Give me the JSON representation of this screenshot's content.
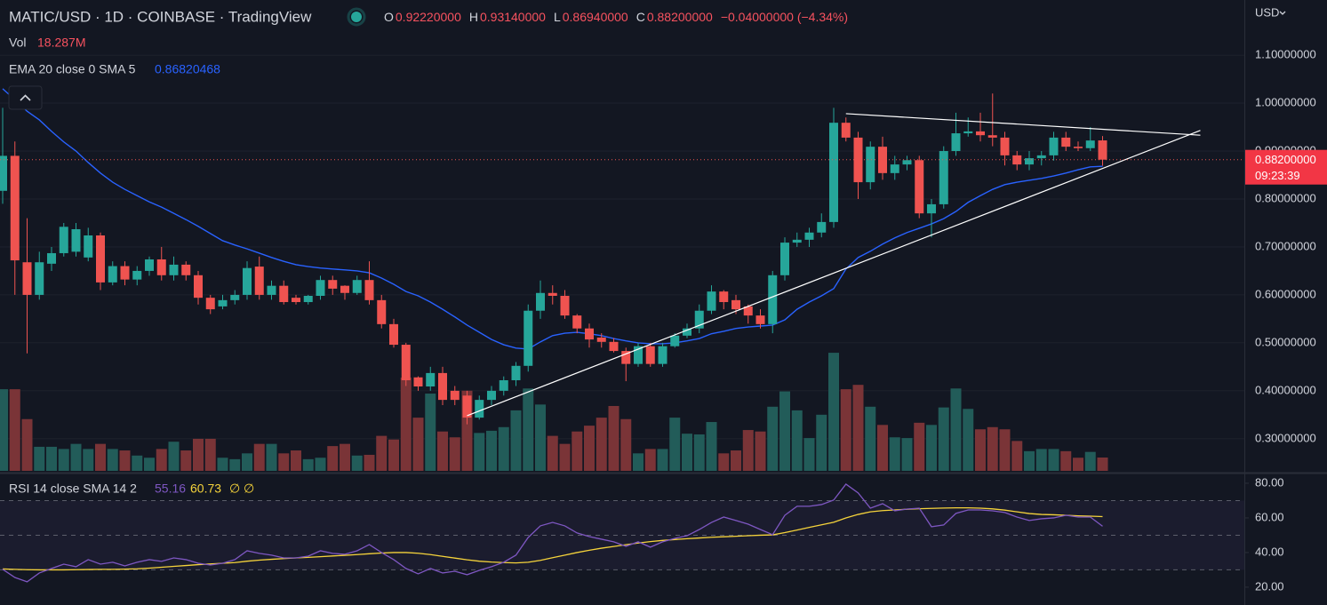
{
  "chart_data": {
    "type": "candlestick",
    "title": "MATIC/USD · 1D · COINBASE · TradingView",
    "ohlc_header": [
      {
        "key": "O",
        "label": "0.92220000"
      },
      {
        "key": "H",
        "label": "0.93140000"
      },
      {
        "key": "L",
        "label": "0.86940000"
      },
      {
        "key": "C",
        "label": "0.88200000"
      }
    ],
    "change_label": "−0.04000000 (−4.34%)",
    "volume_title": "Vol",
    "volume_label": "18.287M",
    "ema_title": "EMA 20 close 0 SMA 5",
    "currency": "USD",
    "price_label": "0.88200000",
    "countdown": "09:23:39",
    "up_color": "#26a69a",
    "down_color": "#ef5350",
    "volume_up_color": "#225c59",
    "volume_down_color": "#7a3437",
    "ema_color": "#2962ff",
    "trendline_color": "#ffffff",
    "grid": true,
    "ylim": [
      0.233,
      1.215
    ],
    "yticks": [
      {
        "value": 0.3,
        "label": "0.30000000"
      },
      {
        "value": 0.4,
        "label": "0.40000000"
      },
      {
        "value": 0.5,
        "label": "0.50000000"
      },
      {
        "value": 0.6,
        "label": "0.60000000"
      },
      {
        "value": 0.7,
        "label": "0.70000000"
      },
      {
        "value": 0.8,
        "label": "0.80000000"
      },
      {
        "value": 0.9,
        "label": "0.90000000"
      },
      {
        "value": 1.0,
        "label": "1.00000000"
      },
      {
        "value": 1.1,
        "label": "1.10000000"
      }
    ],
    "volume_ylim": [
      0,
      646
    ],
    "open": [
      0.817,
      0.89,
      0.668,
      0.6,
      0.665,
      0.687,
      0.69,
      0.678,
      0.724,
      0.626,
      0.66,
      0.632,
      0.65,
      0.674,
      0.641,
      0.663,
      0.641,
      0.594,
      0.576,
      0.589,
      0.6,
      0.659,
      0.6,
      0.619,
      0.594,
      0.585,
      0.598,
      0.631,
      0.619,
      0.604,
      0.631,
      0.589,
      0.539,
      0.496,
      0.428,
      0.409,
      0.437,
      0.4,
      0.39,
      0.344,
      0.381,
      0.4,
      0.422,
      0.452,
      0.567,
      0.604,
      0.598,
      0.557,
      0.53,
      0.511,
      0.502,
      0.483,
      0.456,
      0.493,
      0.456,
      0.493,
      0.515,
      0.53,
      0.567,
      0.607,
      0.589,
      0.576,
      0.557,
      0.539,
      0.641,
      0.709,
      0.715,
      0.73,
      0.752,
      0.959,
      0.928,
      0.835,
      0.909,
      0.854,
      0.872,
      0.881,
      0.77,
      0.789,
      0.9,
      0.937,
      0.941,
      0.933,
      0.928,
      0.891,
      0.872,
      0.885,
      0.891,
      0.928,
      0.909,
      0.906,
      0.9222
    ],
    "high": [
      0.99,
      0.92,
      0.76,
      0.69,
      0.7,
      0.75,
      0.75,
      0.74,
      0.73,
      0.67,
      0.67,
      0.66,
      0.68,
      0.7,
      0.68,
      0.67,
      0.65,
      0.6,
      0.6,
      0.61,
      0.67,
      0.68,
      0.63,
      0.63,
      0.6,
      0.6,
      0.64,
      0.64,
      0.62,
      0.64,
      0.67,
      0.6,
      0.55,
      0.5,
      0.43,
      0.45,
      0.45,
      0.41,
      0.4,
      0.39,
      0.41,
      0.43,
      0.46,
      0.58,
      0.63,
      0.62,
      0.61,
      0.56,
      0.54,
      0.52,
      0.51,
      0.49,
      0.5,
      0.5,
      0.5,
      0.52,
      0.54,
      0.58,
      0.62,
      0.61,
      0.6,
      0.58,
      0.57,
      0.65,
      0.72,
      0.73,
      0.74,
      0.77,
      0.99,
      0.97,
      0.94,
      0.92,
      0.93,
      0.89,
      0.89,
      0.89,
      0.8,
      0.91,
      0.98,
      0.97,
      0.98,
      1.02,
      0.94,
      0.9,
      0.9,
      0.9,
      0.94,
      0.94,
      0.92,
      0.95,
      0.9314
    ],
    "low": [
      0.79,
      0.6,
      0.478,
      0.59,
      0.65,
      0.68,
      0.68,
      0.67,
      0.61,
      0.62,
      0.62,
      0.62,
      0.64,
      0.63,
      0.63,
      0.63,
      0.58,
      0.56,
      0.57,
      0.58,
      0.59,
      0.59,
      0.59,
      0.58,
      0.58,
      0.58,
      0.59,
      0.6,
      0.59,
      0.6,
      0.58,
      0.53,
      0.49,
      0.41,
      0.4,
      0.4,
      0.37,
      0.37,
      0.33,
      0.34,
      0.37,
      0.39,
      0.41,
      0.44,
      0.55,
      0.58,
      0.55,
      0.52,
      0.49,
      0.49,
      0.48,
      0.42,
      0.45,
      0.45,
      0.45,
      0.49,
      0.51,
      0.52,
      0.56,
      0.57,
      0.56,
      0.54,
      0.53,
      0.52,
      0.63,
      0.7,
      0.7,
      0.72,
      0.74,
      0.92,
      0.8,
      0.82,
      0.84,
      0.84,
      0.86,
      0.76,
      0.72,
      0.78,
      0.89,
      0.93,
      0.92,
      0.91,
      0.87,
      0.86,
      0.86,
      0.87,
      0.88,
      0.9,
      0.9,
      0.9,
      0.8694
    ],
    "close": [
      0.89,
      0.672,
      0.6,
      0.668,
      0.687,
      0.742,
      0.737,
      0.724,
      0.626,
      0.66,
      0.632,
      0.65,
      0.674,
      0.641,
      0.663,
      0.641,
      0.594,
      0.57,
      0.589,
      0.6,
      0.656,
      0.6,
      0.619,
      0.585,
      0.585,
      0.598,
      0.631,
      0.613,
      0.604,
      0.631,
      0.589,
      0.539,
      0.496,
      0.422,
      0.409,
      0.437,
      0.381,
      0.381,
      0.344,
      0.381,
      0.4,
      0.422,
      0.452,
      0.567,
      0.604,
      0.598,
      0.557,
      0.53,
      0.507,
      0.502,
      0.483,
      0.456,
      0.493,
      0.456,
      0.493,
      0.515,
      0.53,
      0.567,
      0.607,
      0.585,
      0.57,
      0.557,
      0.539,
      0.641,
      0.709,
      0.715,
      0.73,
      0.752,
      0.959,
      0.928,
      0.835,
      0.909,
      0.854,
      0.872,
      0.881,
      0.77,
      0.789,
      0.9,
      0.937,
      0.941,
      0.933,
      0.928,
      0.891,
      0.872,
      0.885,
      0.891,
      0.928,
      0.909,
      0.906,
      0.922,
      0.882
    ],
    "volume": [
      112,
      112,
      71,
      33,
      33,
      30,
      37,
      30,
      37,
      30,
      28,
      21,
      18,
      30,
      40,
      28,
      44,
      44,
      18,
      16,
      24,
      37,
      37,
      24,
      28,
      16,
      18,
      34,
      37,
      21,
      22,
      48,
      43,
      128,
      73,
      106,
      54,
      46,
      110,
      52,
      55,
      60,
      83,
      113,
      91,
      48,
      37,
      54,
      62,
      73,
      89,
      71,
      24,
      30,
      30,
      73,
      51,
      50,
      67,
      24,
      28,
      56,
      54,
      88,
      109,
      83,
      45,
      77,
      162,
      112,
      118,
      88,
      63,
      46,
      45,
      66,
      63,
      87,
      113,
      85,
      57,
      60,
      57,
      41,
      27,
      30,
      30,
      27,
      18,
      26,
      18.287
    ],
    "ema": [
      1.03,
      1.007,
      0.983,
      0.965,
      0.941,
      0.919,
      0.9,
      0.876,
      0.854,
      0.835,
      0.82,
      0.807,
      0.794,
      0.783,
      0.77,
      0.757,
      0.743,
      0.728,
      0.713,
      0.704,
      0.696,
      0.687,
      0.678,
      0.67,
      0.663,
      0.659,
      0.656,
      0.654,
      0.652,
      0.65,
      0.646,
      0.635,
      0.622,
      0.607,
      0.598,
      0.585,
      0.57,
      0.554,
      0.537,
      0.522,
      0.507,
      0.496,
      0.489,
      0.487,
      0.502,
      0.515,
      0.52,
      0.522,
      0.519,
      0.515,
      0.509,
      0.504,
      0.5,
      0.498,
      0.498,
      0.5,
      0.504,
      0.509,
      0.519,
      0.524,
      0.53,
      0.533,
      0.535,
      0.537,
      0.548,
      0.57,
      0.585,
      0.598,
      0.613,
      0.654,
      0.678,
      0.691,
      0.706,
      0.719,
      0.73,
      0.739,
      0.748,
      0.759,
      0.774,
      0.793,
      0.807,
      0.82,
      0.83,
      0.835,
      0.839,
      0.843,
      0.848,
      0.854,
      0.861,
      0.867,
      0.86820468
    ],
    "trendlines": [
      {
        "index": [
          69,
          98
        ],
        "price": [
          0.978,
          0.933
        ]
      },
      {
        "index": [
          38,
          98
        ],
        "price": [
          0.348,
          0.943
        ]
      }
    ],
    "rsi": {
      "title": "RSI 14 close SMA 14 2",
      "extras": [
        "∅",
        "∅"
      ],
      "color": "#7e57c2",
      "sma_color": "#f5d33b",
      "ylim": [
        9.7,
        84.6
      ],
      "yticks": [
        {
          "value": 20,
          "label": "20.00"
        },
        {
          "value": 40,
          "label": "40.00"
        },
        {
          "value": 60,
          "label": "60.00"
        },
        {
          "value": 80,
          "label": "80.00"
        }
      ],
      "bands": [
        70,
        50,
        30
      ],
      "values": [
        30.3,
        25.6,
        23.1,
        28.2,
        30.8,
        33.3,
        31.8,
        35.9,
        33.3,
        34.4,
        32.3,
        34.4,
        35.9,
        34.9,
        36.9,
        35.9,
        33.8,
        32.8,
        33.8,
        35.9,
        41,
        39.5,
        38.5,
        36.9,
        36.9,
        37.9,
        41,
        39.5,
        39,
        41,
        44.6,
        40,
        35.9,
        30.8,
        27.7,
        30.8,
        28.2,
        29.2,
        27.2,
        29.7,
        31.8,
        34.4,
        38.5,
        48.7,
        55.4,
        57.4,
        55.4,
        51.3,
        49.2,
        47.7,
        46.2,
        43.6,
        46.2,
        43.1,
        46.2,
        48.2,
        49.7,
        53.3,
        57.4,
        60.5,
        58.5,
        56.4,
        53.3,
        50.3,
        61.5,
        66.7,
        66.7,
        67.7,
        70.3,
        79.5,
        74.4,
        65.6,
        68.2,
        64.1,
        65.1,
        65.6,
        54.9,
        55.9,
        62.6,
        64.6,
        64.6,
        64.1,
        63.1,
        60.5,
        58.5,
        59.5,
        60,
        61.5,
        60.5,
        60.5,
        55.16
      ],
      "sma": [
        30.5,
        30.3,
        30.1,
        30,
        30,
        30,
        30.1,
        30.2,
        30.3,
        30.3,
        30.4,
        30.6,
        31,
        31.5,
        32,
        32.5,
        33,
        33.4,
        33.8,
        34.2,
        35,
        35.6,
        36.1,
        36.5,
        36.9,
        37.2,
        37.6,
        38,
        38.4,
        38.8,
        39.3,
        39.7,
        40,
        40,
        39.6,
        38.8,
        37.8,
        36.8,
        35.8,
        35,
        34.5,
        34.2,
        34,
        34.4,
        35.5,
        37,
        38.5,
        40,
        41.3,
        42.5,
        43.5,
        44.5,
        45.5,
        46.3,
        47,
        47.5,
        48,
        48.4,
        48.8,
        49.1,
        49.4,
        49.7,
        50,
        50.2,
        51.5,
        53,
        54.5,
        56,
        57.5,
        60,
        62,
        63.5,
        64.2,
        64.6,
        65,
        65.3,
        65.5,
        65.7,
        65.8,
        65.8,
        65.6,
        65.2,
        64.5,
        63.5,
        62.5,
        62,
        61.8,
        61.5,
        61.2,
        61,
        60.73
      ]
    }
  }
}
